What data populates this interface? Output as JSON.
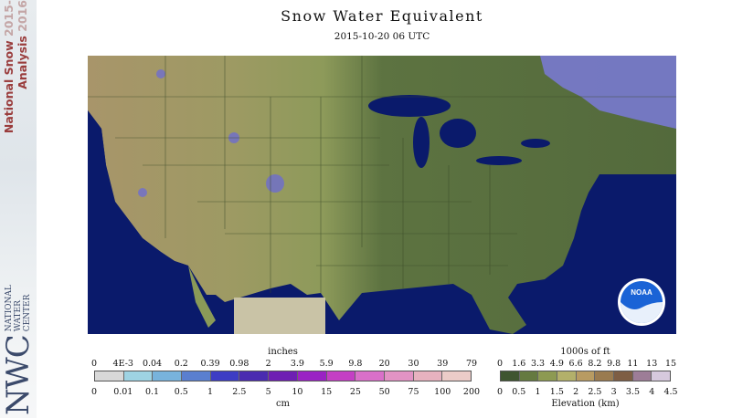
{
  "branding": {
    "title_line1": "National Snow",
    "title_year1": "2015-",
    "title_line2": "Analysis",
    "title_year2": "2016",
    "logo_text": "NWC",
    "logo_words": [
      "NATIONAL",
      "WATER",
      "CENTER"
    ]
  },
  "header": {
    "title": "Snow Water Equivalent",
    "timestamp": "2015-10-20 06 UTC"
  },
  "map": {
    "logo_text": "NOAA",
    "colors": {
      "ocean": "#0a1a6b",
      "out_of_domain": "#0d1f55",
      "lowland": "#5b7340",
      "plains": "#8a9a58",
      "highland": "#b39b6e",
      "snow": "#6b6bd6",
      "great_lakes": "#0a1a6b",
      "mexico_gray": "#c9c3a6"
    }
  },
  "swe_legend": {
    "top_unit": "inches",
    "top_ticks": [
      "0",
      "4E-3",
      "0.04",
      "0.2",
      "0.39",
      "0.98",
      "2",
      "3.9",
      "5.9",
      "9.8",
      "20",
      "30",
      "39",
      "79"
    ],
    "bottom_unit": "cm",
    "bottom_ticks": [
      "0",
      "0.01",
      "0.1",
      "0.5",
      "1",
      "2.5",
      "5",
      "10",
      "15",
      "25",
      "50",
      "75",
      "100",
      "200"
    ],
    "colors": [
      "#d8d8d8",
      "#9ed3e3",
      "#78b3dc",
      "#5a7fcf",
      "#3d3dc4",
      "#4a2bb0",
      "#6e1fb3",
      "#9a22c4",
      "#c43fc4",
      "#d970c9",
      "#e293c4",
      "#e7b2bf",
      "#ecccc8"
    ]
  },
  "elev_legend": {
    "top_unit": "1000s of ft",
    "top_ticks": [
      "0",
      "1.6",
      "3.3",
      "4.9",
      "6.6",
      "8.2",
      "9.8",
      "11",
      "13",
      "15"
    ],
    "bottom_unit": "Elevation (km)",
    "bottom_ticks": [
      "0",
      "0.5",
      "1",
      "1.5",
      "2",
      "2.5",
      "3",
      "3.5",
      "4",
      "4.5"
    ],
    "colors": [
      "#3f5530",
      "#657a40",
      "#8d9a52",
      "#b3b06a",
      "#b89b62",
      "#9a7b50",
      "#7e5e44",
      "#9d7d97",
      "#d6c9dd"
    ]
  }
}
